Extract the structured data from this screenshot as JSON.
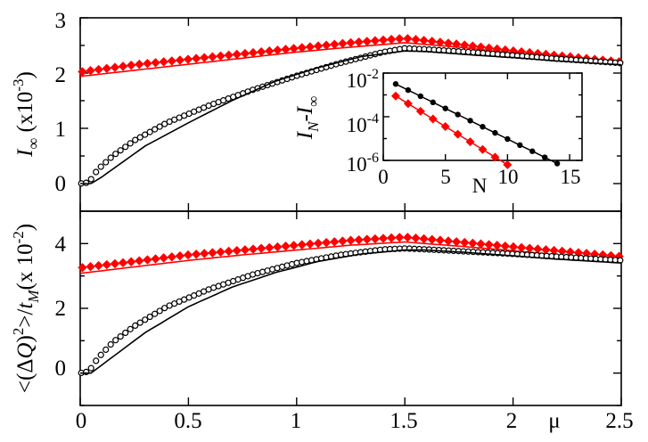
{
  "colors": {
    "red": "#ff0000",
    "black": "#000000"
  },
  "chart_data": [
    {
      "type": "scatter",
      "panel": "top",
      "x_range": [
        0,
        2.5
      ],
      "y_range": [
        -0.5,
        3
      ],
      "x_ticks": [
        0,
        0.5,
        1,
        1.5,
        2,
        2.5
      ],
      "y_tick_labels": [
        "0",
        "1",
        "2",
        "3"
      ],
      "ylabel": {
        "main": "I",
        "sub": "∞",
        "unit": " (x10",
        "exp": "-3",
        "close": ")"
      },
      "series": [
        {
          "marker": "red-diamond",
          "color": "#ff0000",
          "x": [
            0.0,
            0.25,
            0.5,
            0.75,
            1.0,
            1.25,
            1.5,
            1.75,
            2.0,
            2.25,
            2.5
          ],
          "y": [
            2.02,
            2.15,
            2.25,
            2.35,
            2.45,
            2.55,
            2.63,
            2.52,
            2.4,
            2.3,
            2.2
          ]
        },
        {
          "marker": "red-line",
          "color": "#ff0000",
          "x": [
            0.0,
            0.25,
            0.5,
            0.75,
            1.0,
            1.25,
            1.5,
            1.75,
            2.0,
            2.25,
            2.5
          ],
          "y": [
            1.94,
            2.05,
            2.16,
            2.27,
            2.38,
            2.47,
            2.55,
            2.47,
            2.36,
            2.26,
            2.16
          ]
        },
        {
          "marker": "open-circle",
          "color": "#000000",
          "x": [
            0.0,
            0.04,
            0.08,
            0.15,
            0.25,
            0.4,
            0.6,
            0.8,
            1.0,
            1.2,
            1.4,
            1.5,
            1.6,
            1.8,
            2.0,
            2.2,
            2.5
          ],
          "y": [
            0.0,
            0.02,
            0.25,
            0.5,
            0.78,
            1.1,
            1.42,
            1.7,
            1.95,
            2.18,
            2.38,
            2.45,
            2.43,
            2.38,
            2.32,
            2.26,
            2.18
          ]
        },
        {
          "marker": "black-line",
          "color": "#000000",
          "x": [
            0.0,
            0.05,
            0.1,
            0.2,
            0.3,
            0.5,
            0.7,
            0.9,
            1.1,
            1.3,
            1.5,
            1.6,
            1.8,
            2.0,
            2.2,
            2.5
          ],
          "y": [
            0.0,
            0.0,
            0.12,
            0.4,
            0.68,
            1.1,
            1.5,
            1.85,
            2.1,
            2.3,
            2.4,
            2.39,
            2.33,
            2.28,
            2.22,
            2.15
          ]
        }
      ]
    },
    {
      "type": "scatter",
      "panel": "bottom",
      "x_range": [
        0,
        2.5
      ],
      "y_range": [
        -1,
        5
      ],
      "x_ticks": [
        0,
        0.5,
        1,
        1.5,
        2,
        2.5
      ],
      "x_tick_labels": [
        "0",
        "0.5",
        "1",
        "1.5",
        "2",
        "2.5"
      ],
      "y_tick_labels": [
        "0",
        "2",
        "4"
      ],
      "xlabel": "μ",
      "ylabel": {
        "pre": "<(Δ",
        "q": "Q",
        "mid": ")",
        "sq": "2",
        "after": ">/",
        "t": "t",
        "sub": "M",
        "unit": "(x 10",
        "exp": "-2",
        "close": ")"
      },
      "series": [
        {
          "marker": "red-diamond",
          "color": "#ff0000",
          "x": [
            0.0,
            0.25,
            0.5,
            0.75,
            1.0,
            1.25,
            1.5,
            1.75,
            2.0,
            2.25,
            2.5
          ],
          "y": [
            3.25,
            3.45,
            3.65,
            3.8,
            3.95,
            4.1,
            4.2,
            4.05,
            3.9,
            3.75,
            3.6
          ]
        },
        {
          "marker": "red-line",
          "color": "#ff0000",
          "x": [
            0.0,
            0.25,
            0.5,
            0.75,
            1.0,
            1.25,
            1.5,
            1.75,
            2.0,
            2.25,
            2.5
          ],
          "y": [
            3.08,
            3.28,
            3.48,
            3.65,
            3.8,
            3.95,
            4.05,
            3.92,
            3.78,
            3.62,
            3.48
          ]
        },
        {
          "marker": "open-circle",
          "color": "#000000",
          "x": [
            0.0,
            0.04,
            0.08,
            0.15,
            0.25,
            0.4,
            0.6,
            0.8,
            1.0,
            1.2,
            1.4,
            1.5,
            1.6,
            1.8,
            2.0,
            2.2,
            2.5
          ],
          "y": [
            0.0,
            0.05,
            0.45,
            0.95,
            1.45,
            2.05,
            2.6,
            3.05,
            3.4,
            3.65,
            3.82,
            3.85,
            3.82,
            3.75,
            3.68,
            3.6,
            3.48
          ]
        },
        {
          "marker": "black-line",
          "color": "#000000",
          "x": [
            0.0,
            0.05,
            0.1,
            0.2,
            0.3,
            0.5,
            0.7,
            0.9,
            1.1,
            1.3,
            1.5,
            1.6,
            1.8,
            2.0,
            2.2,
            2.5
          ],
          "y": [
            0.0,
            0.0,
            0.25,
            0.75,
            1.25,
            2.05,
            2.65,
            3.1,
            3.45,
            3.68,
            3.8,
            3.8,
            3.72,
            3.62,
            3.52,
            3.4
          ]
        }
      ]
    },
    {
      "type": "line",
      "panel": "inset",
      "yscale": "log",
      "x_range": [
        0,
        16
      ],
      "y_range": [
        1e-06,
        0.01
      ],
      "x_tick_labels": [
        "0",
        "5",
        "10",
        "15"
      ],
      "xlabel": "N",
      "ylabel": {
        "i1": "I",
        "s1": "N",
        "dash": "-",
        "i2": "I",
        "s2": "∞"
      },
      "y_ticks": [
        {
          "base": "10",
          "exp": "-2"
        },
        {
          "base": "10",
          "exp": "-4"
        },
        {
          "base": "10",
          "exp": "-6"
        }
      ],
      "series": [
        {
          "marker": "black-circle",
          "color": "#000000",
          "x": [
            1,
            2,
            3,
            4,
            5,
            6,
            7,
            8,
            9,
            10,
            11,
            12,
            13,
            14
          ],
          "y": [
            0.00316,
            0.00166,
            0.00087,
            0.000457,
            0.00024,
            0.000126,
            6.6e-05,
            3.47e-05,
            1.82e-05,
            9.55e-06,
            5e-06,
            2.63e-06,
            1.38e-06,
            7.2e-07
          ]
        },
        {
          "marker": "red-diamond",
          "color": "#ff0000",
          "x": [
            1,
            2,
            3,
            4,
            5,
            6,
            7,
            8,
            9,
            10
          ],
          "y": [
            0.00089,
            0.000398,
            0.000178,
            7.94e-05,
            3.55e-05,
            1.58e-05,
            7.1e-06,
            3.16e-06,
            1.41e-06,
            6.3e-07
          ]
        }
      ]
    }
  ]
}
